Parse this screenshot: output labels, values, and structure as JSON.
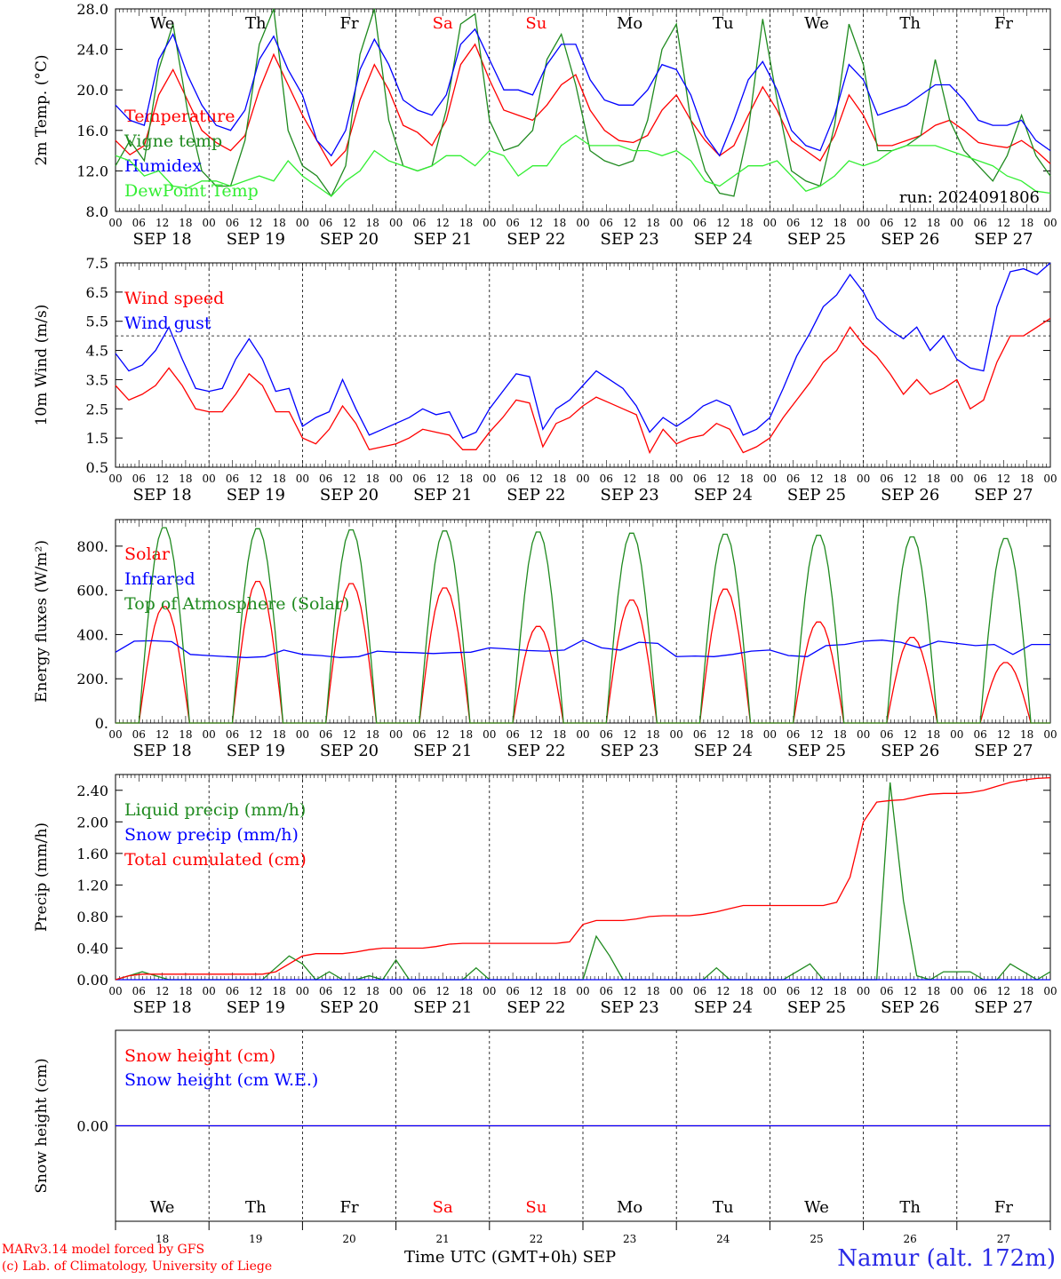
{
  "chart_data": [
    {
      "type": "line",
      "ylabel": "2m Temp. (°C)",
      "ylim": [
        8,
        28
      ],
      "yticks": [
        "8.0",
        "12.0",
        "16.0",
        "20.0",
        "24.0",
        "28.0"
      ],
      "annotation": "run: 2024091806",
      "x_hours": [
        0,
        3,
        6,
        9,
        12,
        15,
        18,
        21,
        24,
        27,
        30,
        33,
        36,
        39,
        42,
        45,
        48,
        51,
        54,
        57,
        60,
        63,
        66,
        69,
        72,
        75,
        78,
        81,
        84,
        87,
        90,
        93,
        96,
        99,
        102,
        105,
        108,
        111,
        114,
        117,
        120,
        123,
        126,
        129,
        132,
        135,
        138,
        141,
        144,
        147,
        150,
        153,
        156,
        159,
        162,
        165,
        168,
        171,
        174,
        177,
        180,
        183,
        186,
        189,
        192,
        195,
        198,
        201,
        204,
        207,
        210,
        213,
        216,
        219,
        222,
        225,
        228,
        231,
        234,
        237,
        240
      ],
      "series": [
        {
          "name": "Temperature",
          "color": "#ff0000",
          "values": [
            15.0,
            13.6,
            14.5,
            19.5,
            22.0,
            19.0,
            16.0,
            14.8,
            14.0,
            15.5,
            20.0,
            23.5,
            20.5,
            17.5,
            15.0,
            12.5,
            14.0,
            19.0,
            22.5,
            20.0,
            16.5,
            15.8,
            14.5,
            17.0,
            22.5,
            24.5,
            21.0,
            18.0,
            17.5,
            17.0,
            18.5,
            20.5,
            21.5,
            18.0,
            16.0,
            15.0,
            14.8,
            15.5,
            18.0,
            19.5,
            17.0,
            15.0,
            13.5,
            14.5,
            17.5,
            20.3,
            18.0,
            15.0,
            14.0,
            13.0,
            15.5,
            19.5,
            17.5,
            14.5,
            14.5,
            15.0,
            15.5,
            16.5,
            17.0,
            16.0,
            14.8,
            14.5,
            14.3,
            15.0,
            14.0,
            12.7
          ]
        },
        {
          "name": "Vigne temp",
          "color": "#1f8a1f",
          "values": [
            12.5,
            15.0,
            13.0,
            22.0,
            26.5,
            18.0,
            12.0,
            10.5,
            10.5,
            15.0,
            24.5,
            28.0,
            16.0,
            12.5,
            11.5,
            9.5,
            12.5,
            23.5,
            28.0,
            17.0,
            12.5,
            12.0,
            12.5,
            18.0,
            26.5,
            27.5,
            17.0,
            14.0,
            14.5,
            16.0,
            23.0,
            25.5,
            20.5,
            14.0,
            13.0,
            12.5,
            13.0,
            17.0,
            24.0,
            26.5,
            17.0,
            12.0,
            9.8,
            9.5,
            16.0,
            27.0,
            19.0,
            12.0,
            11.0,
            10.5,
            16.5,
            26.5,
            22.5,
            14.0,
            14.0,
            14.5,
            15.5,
            23.0,
            17.0,
            14.0,
            12.5,
            11.0,
            13.5,
            17.5,
            13.5,
            11.5
          ]
        },
        {
          "name": "Humidex",
          "color": "#0000ff",
          "values": [
            18.5,
            17.0,
            16.5,
            23.0,
            25.5,
            21.5,
            18.5,
            16.5,
            16.0,
            18.0,
            23.0,
            25.3,
            22.0,
            19.5,
            15.0,
            13.5,
            16.0,
            22.0,
            25.0,
            22.5,
            19.0,
            18.0,
            17.5,
            19.5,
            24.5,
            26.0,
            23.0,
            20.0,
            20.0,
            19.5,
            22.5,
            24.5,
            24.5,
            21.0,
            19.0,
            18.5,
            18.5,
            20.0,
            22.5,
            22.0,
            19.5,
            15.5,
            13.5,
            17.0,
            21.0,
            22.8,
            20.0,
            16.0,
            14.5,
            14.0,
            17.5,
            22.5,
            21.0,
            17.5,
            18.0,
            18.5,
            19.5,
            20.5,
            20.5,
            19.0,
            17.0,
            16.5,
            16.5,
            17.0,
            15.0,
            14.0
          ]
        },
        {
          "name": "DewPoint Temp",
          "color": "#33ee33",
          "values": [
            13.5,
            13.0,
            11.5,
            12.0,
            10.5,
            10.3,
            11.0,
            11.0,
            10.5,
            11.0,
            11.5,
            11.0,
            13.0,
            11.5,
            10.5,
            9.5,
            11.0,
            12.0,
            14.0,
            13.0,
            12.5,
            12.0,
            12.5,
            13.5,
            13.5,
            12.5,
            14.0,
            13.5,
            11.5,
            12.5,
            12.5,
            14.5,
            15.5,
            14.5,
            14.5,
            14.5,
            14.0,
            14.0,
            13.5,
            14.0,
            13.0,
            11.0,
            10.5,
            11.5,
            12.5,
            12.5,
            13.0,
            11.5,
            10.0,
            10.5,
            11.5,
            13.0,
            12.5,
            13.0,
            14.0,
            14.5,
            14.5,
            14.5,
            14.0,
            13.5,
            13.0,
            12.5,
            11.5,
            11.0,
            10.0,
            9.8
          ]
        }
      ]
    },
    {
      "type": "line",
      "ylabel": "10m Wind (m/s)",
      "ylim": [
        0.5,
        7.5
      ],
      "yticks": [
        "0.5",
        "1.5",
        "2.5",
        "3.5",
        "4.5",
        "5.5",
        "6.5",
        "7.5"
      ],
      "reference_line": 5.0,
      "series": [
        {
          "name": "Wind speed",
          "color": "#ff0000",
          "values": [
            3.3,
            2.8,
            3.0,
            3.3,
            3.9,
            3.3,
            2.5,
            2.4,
            2.4,
            3.0,
            3.7,
            3.3,
            2.4,
            2.4,
            1.5,
            1.3,
            1.8,
            2.6,
            2.0,
            1.1,
            1.2,
            1.3,
            1.5,
            1.8,
            1.7,
            1.6,
            1.1,
            1.1,
            1.7,
            2.2,
            2.8,
            2.7,
            1.2,
            2.0,
            2.2,
            2.6,
            2.9,
            2.7,
            2.5,
            2.3,
            1.0,
            1.8,
            1.3,
            1.5,
            1.6,
            2.0,
            1.8,
            1.0,
            1.2,
            1.5,
            2.2,
            2.8,
            3.4,
            4.1,
            4.5,
            5.3,
            4.7,
            4.3,
            3.7,
            3.0,
            3.5,
            3.0,
            3.2,
            3.5,
            2.5,
            2.8,
            4.1,
            5.0,
            5.0,
            5.3,
            5.6
          ]
        },
        {
          "name": "Wind gust",
          "color": "#0000ff",
          "values": [
            4.4,
            3.8,
            4.0,
            4.5,
            5.3,
            4.2,
            3.2,
            3.1,
            3.2,
            4.2,
            4.9,
            4.2,
            3.1,
            3.2,
            1.9,
            2.2,
            2.4,
            3.5,
            2.5,
            1.6,
            1.8,
            2.0,
            2.2,
            2.5,
            2.3,
            2.4,
            1.5,
            1.7,
            2.5,
            3.1,
            3.7,
            3.6,
            1.8,
            2.5,
            2.8,
            3.3,
            3.8,
            3.5,
            3.2,
            2.6,
            1.7,
            2.2,
            1.9,
            2.2,
            2.6,
            2.8,
            2.6,
            1.6,
            1.8,
            2.2,
            3.2,
            4.3,
            5.1,
            6.0,
            6.4,
            7.1,
            6.5,
            5.6,
            5.2,
            4.9,
            5.3,
            4.5,
            5.0,
            4.2,
            3.9,
            3.8,
            6.0,
            7.2,
            7.3,
            7.1,
            7.5
          ]
        }
      ]
    },
    {
      "type": "line",
      "ylabel": "Energy fluxes (W/m²)",
      "ylim": [
        0,
        920
      ],
      "yticks": [
        "0.",
        "200.",
        "400.",
        "600.",
        "800."
      ],
      "series": [
        {
          "name": "Solar",
          "color": "#ff0000",
          "peaks": [
            530,
            645,
            635,
            615,
            440,
            560,
            610,
            460,
            390,
            275
          ]
        },
        {
          "name": "Infrared",
          "color": "#0000ff",
          "values": [
            320,
            370,
            372,
            368,
            310,
            305,
            300,
            296,
            300,
            330,
            310,
            305,
            296,
            300,
            325,
            320,
            318,
            314,
            318,
            320,
            340,
            335,
            328,
            325,
            330,
            375,
            340,
            330,
            365,
            360,
            300,
            303,
            300,
            310,
            325,
            330,
            305,
            300,
            350,
            355,
            370,
            375,
            365,
            340,
            370,
            360,
            350,
            355,
            310,
            355,
            355
          ]
        },
        {
          "name": "Top of Atmosphere (Solar)",
          "color": "#1f8a1f",
          "peaks": [
            890,
            885,
            880,
            875,
            870,
            865,
            860,
            855,
            848,
            840
          ]
        }
      ]
    },
    {
      "type": "line",
      "ylabel": "Precip (mm/h)",
      "ylim": [
        0,
        2.6
      ],
      "yticks": [
        "0.00",
        "0.40",
        "0.80",
        "1.20",
        "1.60",
        "2.00",
        "2.40"
      ],
      "series": [
        {
          "name": "Liquid precip (mm/h)",
          "color": "#1f8a1f",
          "values": [
            0,
            0.05,
            0.1,
            0.05,
            0,
            0,
            0,
            0,
            0,
            0,
            0,
            0,
            0.15,
            0.3,
            0.2,
            0,
            0.1,
            0,
            0,
            0.05,
            0,
            0.25,
            0,
            0,
            0,
            0,
            0,
            0.15,
            0,
            0,
            0,
            0,
            0,
            0,
            0,
            0,
            0.55,
            0.3,
            0,
            0,
            0,
            0,
            0,
            0,
            0,
            0.15,
            0,
            0,
            0,
            0,
            0,
            0.1,
            0.2,
            0,
            0,
            0,
            0,
            0,
            2.5,
            1.0,
            0.05,
            0,
            0.1,
            0.1,
            0.1,
            0,
            0,
            0.2,
            0.1,
            0,
            0.1
          ]
        },
        {
          "name": "Snow precip (mm/h)",
          "color": "#0000ff",
          "values": [
            0,
            0
          ]
        },
        {
          "name": "Total cumulated (cm)",
          "color": "#ff0000",
          "values": [
            0,
            0.05,
            0.07,
            0.07,
            0.07,
            0.07,
            0.07,
            0.07,
            0.07,
            0.07,
            0.07,
            0.07,
            0.1,
            0.2,
            0.3,
            0.33,
            0.33,
            0.33,
            0.35,
            0.38,
            0.4,
            0.4,
            0.4,
            0.4,
            0.42,
            0.45,
            0.46,
            0.46,
            0.46,
            0.46,
            0.46,
            0.46,
            0.46,
            0.46,
            0.48,
            0.7,
            0.75,
            0.75,
            0.75,
            0.77,
            0.8,
            0.81,
            0.81,
            0.81,
            0.83,
            0.86,
            0.9,
            0.94,
            0.94,
            0.94,
            0.94,
            0.94,
            0.94,
            0.94,
            0.98,
            1.3,
            2.0,
            2.25,
            2.27,
            2.28,
            2.32,
            2.35,
            2.36,
            2.36,
            2.37,
            2.4,
            2.45,
            2.5,
            2.53,
            2.55,
            2.56
          ]
        }
      ]
    },
    {
      "type": "line",
      "ylabel": "Snow height (cm)",
      "ylim": [
        -1,
        1
      ],
      "yticks": [
        "0.00"
      ],
      "series": [
        {
          "name": "Snow height (cm)",
          "color": "#ff0000",
          "values": [
            0,
            0
          ]
        },
        {
          "name": "Snow height (cm W.E.)",
          "color": "#0000ff",
          "values": [
            0,
            0
          ]
        }
      ]
    }
  ],
  "hour_ticks": [
    "00",
    "06",
    "12",
    "18"
  ],
  "final_hour_tick": "00",
  "date_labels": [
    "SEP 18",
    "SEP 19",
    "SEP 20",
    "SEP 21",
    "SEP 22",
    "SEP 23",
    "SEP 24",
    "SEP 25",
    "SEP 26",
    "SEP 27"
  ],
  "weekdays": [
    {
      "label": "We",
      "color": "#000000"
    },
    {
      "label": "Th",
      "color": "#000000"
    },
    {
      "label": "Fr",
      "color": "#000000"
    },
    {
      "label": "Sa",
      "color": "#ff0000"
    },
    {
      "label": "Su",
      "color": "#ff0000"
    },
    {
      "label": "Mo",
      "color": "#000000"
    },
    {
      "label": "Tu",
      "color": "#000000"
    },
    {
      "label": "We",
      "color": "#000000"
    },
    {
      "label": "Th",
      "color": "#000000"
    },
    {
      "label": "Fr",
      "color": "#000000"
    }
  ],
  "day_numbers": [
    "18",
    "19",
    "20",
    "21",
    "22",
    "23",
    "24",
    "25",
    "26",
    "27"
  ],
  "footer": {
    "credit_line1": "MARv3.14 model forced by GFS",
    "credit_line2": "(c) Lab. of Climatology, University of Liege",
    "xlabel": "Time UTC (GMT+0h) SEP",
    "location": "Namur (alt. 172m)"
  },
  "colors": {
    "axis": "#000000",
    "grid": "#000000"
  }
}
